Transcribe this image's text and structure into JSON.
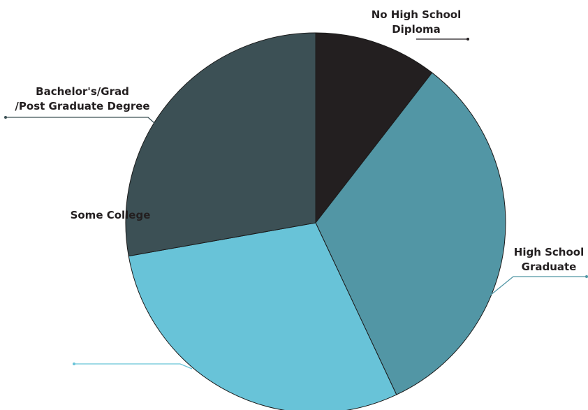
{
  "chart_data": {
    "type": "pie",
    "title": "",
    "slices": [
      {
        "label": "No High School Diploma",
        "label_lines": [
          "No High School",
          "Diploma"
        ],
        "value": 10.5,
        "color": "#231f20",
        "leader_color": "#231f20"
      },
      {
        "label": "High School Graduate",
        "label_lines": [
          "High School",
          "Graduate"
        ],
        "value": 32.5,
        "color": "#5296a5",
        "leader_color": "#5296a5"
      },
      {
        "label": "Some College",
        "label_lines": [
          "Some College"
        ],
        "value": 29.2,
        "color": "#68c3d8",
        "leader_color": "#68c3d8"
      },
      {
        "label": "Bachelor's/Grad /Post Graduate Degree",
        "label_lines": [
          "Bachelor's/Grad",
          "/Post Graduate Degree"
        ],
        "value": 27.8,
        "color": "#3c5055",
        "leader_color": "#3c5055"
      }
    ],
    "start_angle": "12 o'clock",
    "direction": "clockwise",
    "legend": "none (direct labels with leader lines)"
  }
}
